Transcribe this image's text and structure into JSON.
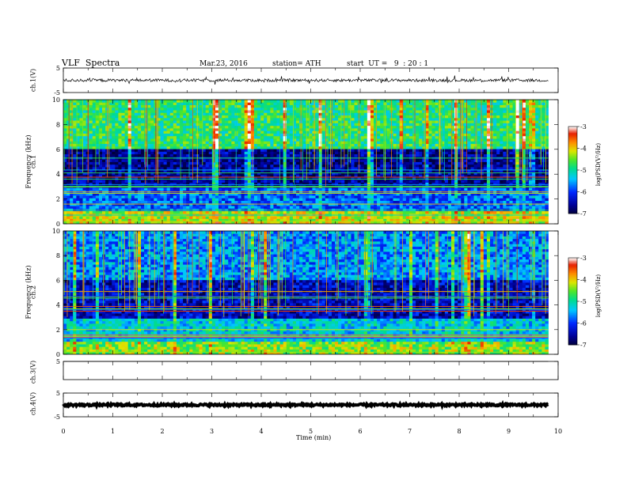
{
  "header": {
    "title": "VLF  Spectra",
    "date": "Mar.23, 2016",
    "station": "station= ATH",
    "start": "start  UT =   9  : 20 : 1"
  },
  "chart_data": [
    {
      "type": "line",
      "panel": "ch1-waveform",
      "ylabel": "ch.1(V)",
      "ylim": [
        -5,
        5
      ],
      "yticks": [
        "5",
        "-5"
      ],
      "xlim": [
        0,
        10
      ],
      "baseline_v": 0.0,
      "noise_amplitude_v": 0.6
    },
    {
      "type": "heatmap",
      "panel": "ch1-spectrogram",
      "ylabel_channel": "ch.1",
      "ylabel": "Frequency  (kHz)",
      "ylim": [
        0,
        10
      ],
      "yticks": [
        "0",
        "2",
        "4",
        "6",
        "8",
        "10"
      ],
      "xlim": [
        0,
        9.8
      ],
      "colorbar": {
        "label": "log(PSD(V²/Hz)",
        "range": [
          -7,
          -3
        ],
        "ticks": [
          "-3",
          "-4",
          "-5",
          "-6",
          "-7"
        ]
      },
      "bands_khz": [
        {
          "from": 0,
          "to": 1.0,
          "level": -4.2
        },
        {
          "from": 1.0,
          "to": 3.0,
          "level": -5.8
        },
        {
          "from": 3.0,
          "to": 6.0,
          "level": -6.6
        },
        {
          "from": 6.0,
          "to": 10.0,
          "level": -4.8
        }
      ]
    },
    {
      "type": "heatmap",
      "panel": "ch2-spectrogram",
      "ylabel_channel": "ch.2",
      "ylabel": "Frequency  (kHz)",
      "ylim": [
        0,
        10
      ],
      "yticks": [
        "0",
        "2",
        "4",
        "6",
        "8",
        "10"
      ],
      "xlim": [
        0,
        9.8
      ],
      "colorbar": {
        "label": "log(PSD(V²/Hz)",
        "range": [
          -7,
          -3
        ],
        "ticks": [
          "-3",
          "-4",
          "-5",
          "-6",
          "-7"
        ]
      },
      "bands_khz": [
        {
          "from": 0,
          "to": 1.0,
          "level": -4.4
        },
        {
          "from": 1.0,
          "to": 3.0,
          "level": -5.3
        },
        {
          "from": 3.0,
          "to": 6.0,
          "level": -6.4
        },
        {
          "from": 6.0,
          "to": 10.0,
          "level": -5.6
        }
      ]
    },
    {
      "type": "line",
      "panel": "ch3-waveform",
      "ylabel": "ch.3(V)",
      "ylim": [
        -5,
        5
      ],
      "yticks": [
        "5"
      ],
      "xlim": [
        0,
        10
      ],
      "baseline_v": 5.0,
      "noise_amplitude_v": 0.0
    },
    {
      "type": "line",
      "panel": "ch4-waveform",
      "ylabel": "ch.4(V)",
      "ylim": [
        -5,
        5
      ],
      "yticks": [
        "5",
        "-5"
      ],
      "xlim": [
        0,
        10
      ],
      "baseline_v": 0.0,
      "noise_amplitude_v": 0.4
    }
  ],
  "xaxis": {
    "label": "Time  (min)",
    "ticks": [
      "0",
      "1",
      "2",
      "3",
      "4",
      "5",
      "6",
      "7",
      "8",
      "9",
      "10"
    ],
    "range": [
      0,
      10
    ]
  }
}
